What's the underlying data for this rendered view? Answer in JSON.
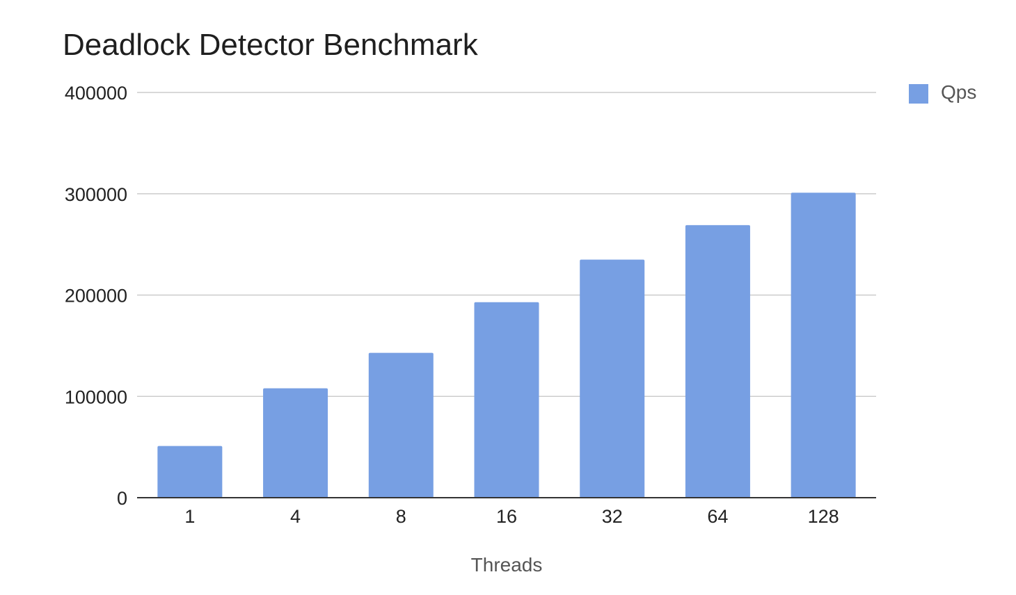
{
  "chart_data": {
    "type": "bar",
    "title": "Deadlock Detector Benchmark",
    "xlabel": "Threads",
    "ylabel": "",
    "categories": [
      "1",
      "4",
      "8",
      "16",
      "32",
      "64",
      "128"
    ],
    "series": [
      {
        "name": "Qps",
        "color": "#779fe3",
        "values": [
          51000,
          108000,
          143000,
          193000,
          235000,
          269000,
          301000
        ]
      }
    ],
    "ylim": [
      0,
      400000
    ],
    "yticks": [
      "0",
      "100000",
      "200000",
      "300000",
      "400000"
    ],
    "grid": true,
    "legend": "top-right"
  },
  "colors": {
    "bar": "#779fe3",
    "grid": "#cccccc",
    "axis": "#333333",
    "tick_text": "#222222",
    "axis_label_text": "#555555",
    "legend_text": "#555555"
  }
}
